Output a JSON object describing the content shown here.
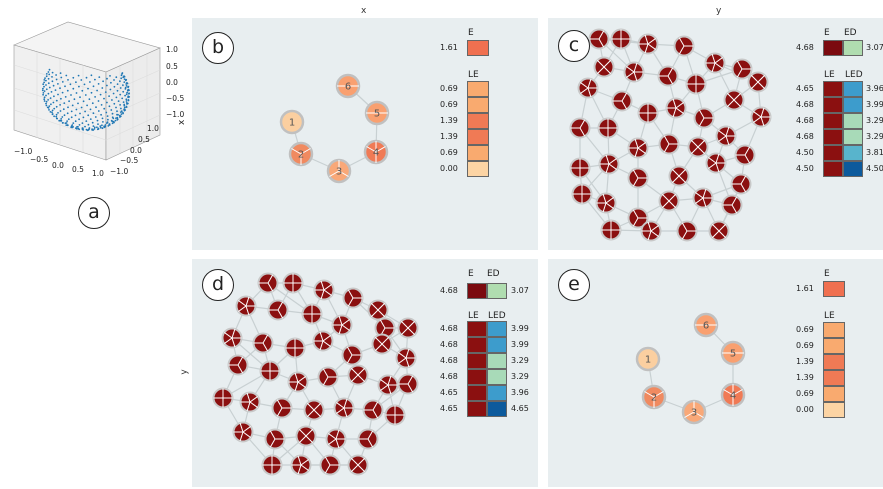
{
  "labels": {
    "top_x": "x",
    "top_y": "y",
    "side_y": "y",
    "sphere_axis_x": "x"
  },
  "panels": {
    "a": {
      "letter": "a"
    },
    "b": {
      "letter": "b"
    },
    "c": {
      "letter": "c"
    },
    "d": {
      "letter": "d"
    },
    "e": {
      "letter": "e"
    }
  },
  "sphere": {
    "xticks": [
      "−1.0",
      "−0.5",
      "0.0",
      "0.5",
      "1.0"
    ],
    "yticks": [
      "−1.0",
      "−0.5",
      "0.0",
      "0.5",
      "1.0"
    ],
    "zticks": [
      "1.0",
      "0.5",
      "0.0",
      "−0.5",
      "−1.0"
    ],
    "point_color": "#1f77b4"
  },
  "legend_b": {
    "e_title": "E",
    "e_value": "1.61",
    "e_color": "#f07050",
    "le_title": "LE",
    "le_rows": [
      {
        "value": "0.69",
        "color": "#f9aa6f"
      },
      {
        "value": "0.69",
        "color": "#f9aa6f"
      },
      {
        "value": "1.39",
        "color": "#f07a55"
      },
      {
        "value": "1.39",
        "color": "#f07a55"
      },
      {
        "value": "0.69",
        "color": "#f9aa6f"
      },
      {
        "value": "0.00",
        "color": "#fcd4a4"
      }
    ]
  },
  "legend_c": {
    "e_title": "E",
    "ed_title": "ED",
    "e_value": "4.68",
    "ed_value": "3.07",
    "e_color": "#7b0a0f",
    "ed_color": "#b0ddb0",
    "le_title": "LE",
    "led_title": "LED",
    "rows": [
      {
        "le": "4.65",
        "led": "3.96",
        "led_color": "#3d9ccc"
      },
      {
        "le": "4.68",
        "led": "3.99",
        "led_color": "#3d9ccc"
      },
      {
        "le": "4.68",
        "led": "3.29",
        "led_color": "#a8dab8"
      },
      {
        "le": "4.68",
        "led": "3.29",
        "led_color": "#a8dab8"
      },
      {
        "le": "4.50",
        "led": "3.81",
        "led_color": "#58b4cc"
      },
      {
        "le": "4.50",
        "led": "4.50",
        "led_color": "#0c5a9c"
      }
    ]
  },
  "legend_d": {
    "e_title": "E",
    "ed_title": "ED",
    "e_value": "4.68",
    "ed_value": "3.07",
    "e_color": "#7b0a0f",
    "ed_color": "#b0ddb0",
    "le_title": "LE",
    "led_title": "LED",
    "rows": [
      {
        "le": "4.68",
        "led": "3.99",
        "led_color": "#3d9ccc"
      },
      {
        "le": "4.68",
        "led": "3.99",
        "led_color": "#3d9ccc"
      },
      {
        "le": "4.68",
        "led": "3.29",
        "led_color": "#a8dab8"
      },
      {
        "le": "4.68",
        "led": "3.29",
        "led_color": "#a8dab8"
      },
      {
        "le": "4.65",
        "led": "3.96",
        "led_color": "#3d9ccc"
      },
      {
        "le": "4.65",
        "led": "4.65",
        "led_color": "#0c5a9c"
      }
    ]
  },
  "legend_e": {
    "e_title": "E",
    "e_value": "1.61",
    "e_color": "#f07050",
    "le_title": "LE",
    "le_rows": [
      {
        "value": "0.69",
        "color": "#f9aa6f"
      },
      {
        "value": "0.69",
        "color": "#f9aa6f"
      },
      {
        "value": "1.39",
        "color": "#f07a55"
      },
      {
        "value": "1.39",
        "color": "#f07a55"
      },
      {
        "value": "0.69",
        "color": "#f9aa6f"
      },
      {
        "value": "0.00",
        "color": "#fcd4a4"
      }
    ]
  },
  "small_graph": {
    "node_labels": [
      "1",
      "2",
      "3",
      "4",
      "5",
      "6"
    ],
    "edges": [
      [
        "1",
        "2"
      ],
      [
        "2",
        "3"
      ],
      [
        "3",
        "4"
      ],
      [
        "4",
        "5"
      ],
      [
        "5",
        "6"
      ]
    ]
  },
  "node_colors": {
    "dark": "#8b1010",
    "edge": "#c8d0d2"
  }
}
